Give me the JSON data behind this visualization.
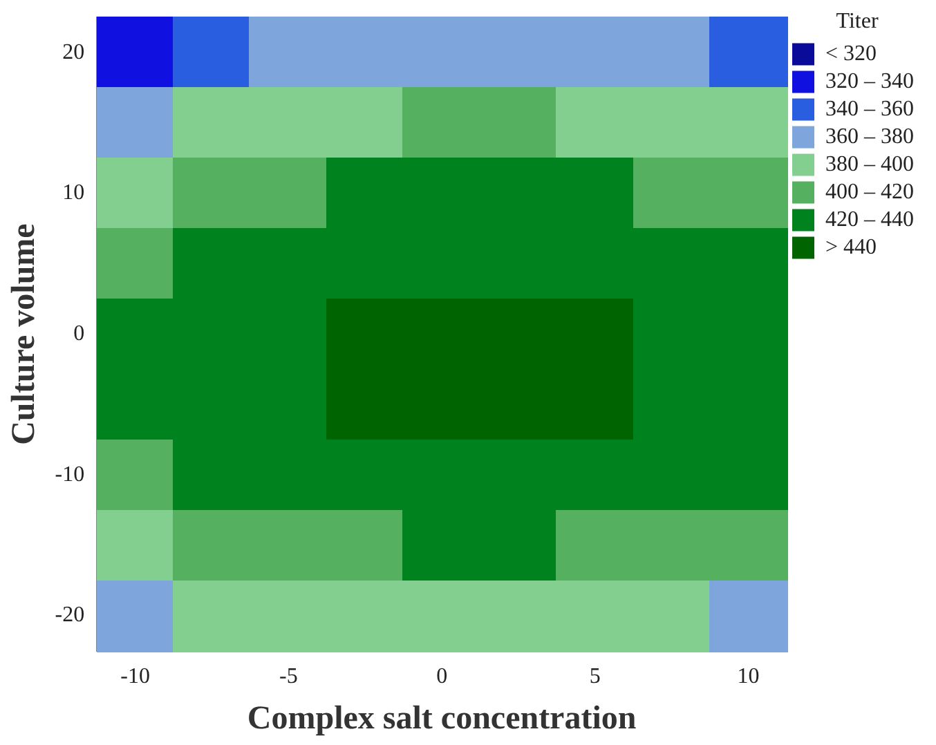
{
  "chart_data": {
    "type": "heatmap",
    "xlabel": "Complex salt concentration",
    "ylabel": "Culture volume",
    "legend_title": "Titer",
    "categories": [
      "-10",
      null,
      "-5",
      null,
      "0",
      null,
      "5",
      null,
      "10"
    ],
    "y_categories": [
      "20",
      null,
      "10",
      null,
      "0",
      null,
      "-10",
      null,
      "-20"
    ],
    "clim": [
      300,
      460
    ],
    "cticks": [
      {
        "value": 310,
        "label": "< 320"
      },
      {
        "value": 330,
        "label": "320 – 340"
      },
      {
        "value": 350,
        "label": "340 – 360"
      },
      {
        "value": 370,
        "label": "360 – 380"
      },
      {
        "value": 390,
        "label": "380 – 400"
      },
      {
        "value": 410,
        "label": "400 – 420"
      },
      {
        "value": 430,
        "label": "420 – 440"
      },
      {
        "value": 450,
        "label": "> 440"
      }
    ],
    "colors": [
      "#0b0b9a",
      "#1010e0",
      "#2a5ee0",
      "#7ea6dc",
      "#82cf8f",
      "#55b060",
      "#00821e",
      "#006400"
    ],
    "cells": [
      [
        330,
        350,
        370,
        370,
        370,
        370,
        370,
        370,
        350
      ],
      [
        370,
        390,
        390,
        390,
        410,
        410,
        390,
        390,
        390
      ],
      [
        390,
        410,
        410,
        430,
        430,
        430,
        430,
        410,
        410
      ],
      [
        410,
        430,
        430,
        430,
        430,
        430,
        430,
        430,
        430
      ],
      [
        430,
        430,
        430,
        450,
        450,
        450,
        450,
        430,
        430
      ],
      [
        430,
        430,
        430,
        450,
        450,
        450,
        450,
        430,
        430
      ],
      [
        410,
        430,
        430,
        430,
        430,
        430,
        430,
        430,
        430
      ],
      [
        390,
        410,
        410,
        410,
        430,
        430,
        410,
        410,
        410
      ],
      [
        370,
        390,
        390,
        390,
        390,
        390,
        390,
        390,
        370
      ]
    ]
  }
}
